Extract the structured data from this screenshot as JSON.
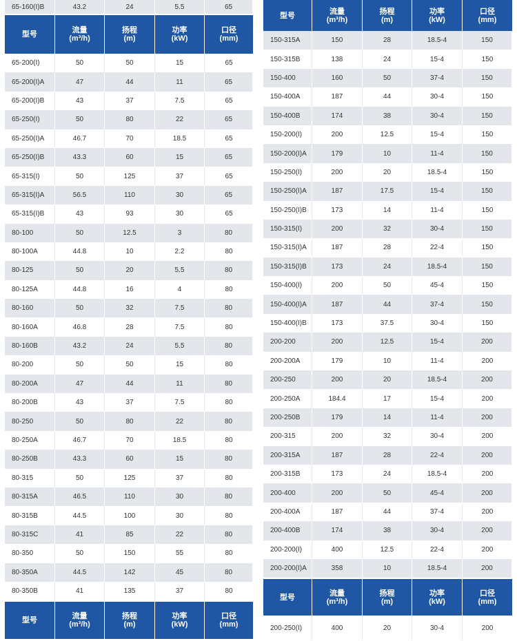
{
  "colors": {
    "header_bg": "#1f57a4",
    "header_text": "#ffffff",
    "stripe": "#e3e6ea",
    "text": "#333333"
  },
  "header": {
    "model": "型号",
    "flow": "流量",
    "flow_unit": "(m³/h)",
    "head": "扬程",
    "head_unit": "(m)",
    "power": "功率",
    "power_unit": "(kW)",
    "diameter": "口径",
    "diameter_unit": "(mm)"
  },
  "left": {
    "top_row": [
      "65-160(I)B",
      "43.2",
      "24",
      "5.5",
      "65"
    ],
    "rows": [
      [
        "65-200(I)",
        "50",
        "50",
        "15",
        "65"
      ],
      [
        "65-200(I)A",
        "47",
        "44",
        "11",
        "65"
      ],
      [
        "65-200(I)B",
        "43",
        "37",
        "7.5",
        "65"
      ],
      [
        "65-250(I)",
        "50",
        "80",
        "22",
        "65"
      ],
      [
        "65-250(I)A",
        "46.7",
        "70",
        "18.5",
        "65"
      ],
      [
        "65-250(I)B",
        "43.3",
        "60",
        "15",
        "65"
      ],
      [
        "65-315(I)",
        "50",
        "125",
        "37",
        "65"
      ],
      [
        "65-315(I)A",
        "56.5",
        "110",
        "30",
        "65"
      ],
      [
        "65-315(I)B",
        "43",
        "93",
        "30",
        "65"
      ],
      [
        "80-100",
        "50",
        "12.5",
        "3",
        "80"
      ],
      [
        "80-100A",
        "44.8",
        "10",
        "2.2",
        "80"
      ],
      [
        "80-125",
        "50",
        "20",
        "5.5",
        "80"
      ],
      [
        "80-125A",
        "44.8",
        "16",
        "4",
        "80"
      ],
      [
        "80-160",
        "50",
        "32",
        "7.5",
        "80"
      ],
      [
        "80-160A",
        "46.8",
        "28",
        "7.5",
        "80"
      ],
      [
        "80-160B",
        "43.2",
        "24",
        "5.5",
        "80"
      ],
      [
        "80-200",
        "50",
        "50",
        "15",
        "80"
      ],
      [
        "80-200A",
        "47",
        "44",
        "11",
        "80"
      ],
      [
        "80-200B",
        "43",
        "37",
        "7.5",
        "80"
      ],
      [
        "80-250",
        "50",
        "80",
        "22",
        "80"
      ],
      [
        "80-250A",
        "46.7",
        "70",
        "18.5",
        "80"
      ],
      [
        "80-250B",
        "43.3",
        "60",
        "15",
        "80"
      ],
      [
        "80-315",
        "50",
        "125",
        "37",
        "80"
      ],
      [
        "80-315A",
        "46.5",
        "110",
        "30",
        "80"
      ],
      [
        "80-315B",
        "44.5",
        "100",
        "30",
        "80"
      ],
      [
        "80-315C",
        "41",
        "85",
        "22",
        "80"
      ],
      [
        "80-350",
        "50",
        "150",
        "55",
        "80"
      ],
      [
        "80-350A",
        "44.5",
        "142",
        "45",
        "80"
      ],
      [
        "80-350B",
        "41",
        "135",
        "37",
        "80"
      ]
    ]
  },
  "right": {
    "rows": [
      [
        "150-315A",
        "150",
        "28",
        "18.5-4",
        "150"
      ],
      [
        "150-315B",
        "138",
        "24",
        "15-4",
        "150"
      ],
      [
        "150-400",
        "160",
        "50",
        "37-4",
        "150"
      ],
      [
        "150-400A",
        "187",
        "44",
        "30-4",
        "150"
      ],
      [
        "150-400B",
        "174",
        "38",
        "30-4",
        "150"
      ],
      [
        "150-200(I)",
        "200",
        "12.5",
        "15-4",
        "150"
      ],
      [
        "150-200(I)A",
        "179",
        "10",
        "11-4",
        "150"
      ],
      [
        "150-250(I)",
        "200",
        "20",
        "18.5-4",
        "150"
      ],
      [
        "150-250(I)A",
        "187",
        "17.5",
        "15-4",
        "150"
      ],
      [
        "150-250(I)B",
        "173",
        "14",
        "11-4",
        "150"
      ],
      [
        "150-315(I)",
        "200",
        "32",
        "30-4",
        "150"
      ],
      [
        "150-315(I)A",
        "187",
        "28",
        "22-4",
        "150"
      ],
      [
        "150-315(I)B",
        "173",
        "24",
        "18.5-4",
        "150"
      ],
      [
        "150-400(I)",
        "200",
        "50",
        "45-4",
        "150"
      ],
      [
        "150-400(I)A",
        "187",
        "44",
        "37-4",
        "150"
      ],
      [
        "150-400(I)B",
        "173",
        "37.5",
        "30-4",
        "150"
      ],
      [
        "200-200",
        "200",
        "12.5",
        "15-4",
        "200"
      ],
      [
        "200-200A",
        "179",
        "10",
        "11-4",
        "200"
      ],
      [
        "200-250",
        "200",
        "20",
        "18.5-4",
        "200"
      ],
      [
        "200-250A",
        "184.4",
        "17",
        "15-4",
        "200"
      ],
      [
        "200-250B",
        "179",
        "14",
        "11-4",
        "200"
      ],
      [
        "200-315",
        "200",
        "32",
        "30-4",
        "200"
      ],
      [
        "200-315A",
        "187",
        "28",
        "22-4",
        "200"
      ],
      [
        "200-315B",
        "173",
        "24",
        "18.5-4",
        "200"
      ],
      [
        "200-400",
        "200",
        "50",
        "45-4",
        "200"
      ],
      [
        "200-400A",
        "187",
        "44",
        "37-4",
        "200"
      ],
      [
        "200-400B",
        "174",
        "38",
        "30-4",
        "200"
      ],
      [
        "200-200(I)",
        "400",
        "12.5",
        "22-4",
        "200"
      ],
      [
        "200-200(I)A",
        "358",
        "10",
        "18.5-4",
        "200"
      ]
    ],
    "bottom_row": [
      "200-250(I)",
      "400",
      "20",
      "30-4",
      "200"
    ]
  }
}
